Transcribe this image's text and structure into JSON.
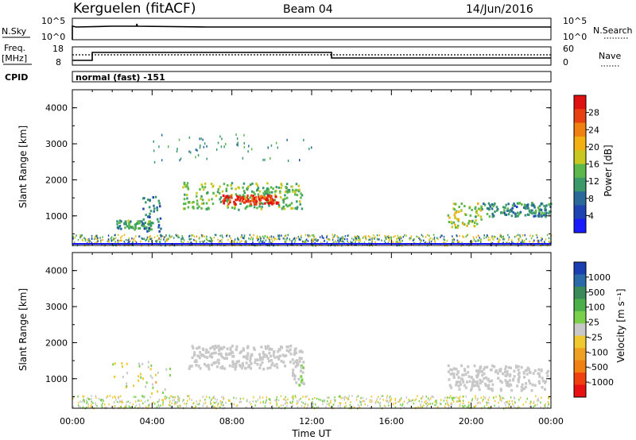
{
  "header": {
    "station": "Kerguelen (fitACF)",
    "beam": "Beam 04",
    "date": "14/Jun/2016"
  },
  "panels": {
    "nsky": {
      "left_label": "N.Sky",
      "tick_top": "10^5",
      "tick_bottom": "10^0",
      "right_tick_top": "10^5",
      "right_tick_bottom": "10^0",
      "right_label": "N.Search"
    },
    "freq": {
      "left_label_1": "Freq.",
      "left_label_2": "[MHz]",
      "tick_top": "18",
      "tick_bottom": "8",
      "right_tick_top": "60",
      "right_tick_bottom": "0",
      "right_label": "Nave"
    },
    "cpid": {
      "label": "CPID",
      "text": "normal (fast) -151"
    }
  },
  "time_axis": {
    "label": "Time UT",
    "ticks": [
      "00:00",
      "04:00",
      "08:00",
      "12:00",
      "16:00",
      "20:00",
      "00:00"
    ]
  },
  "range_axis": {
    "label": "Slant Range [km]",
    "ticks": [
      "1000",
      "2000",
      "3000",
      "4000"
    ]
  },
  "power_bar": {
    "label": "Power [dB]",
    "ticks": [
      "4",
      "8",
      "12",
      "16",
      "20",
      "24",
      "28"
    ],
    "colors": [
      "#1a1aff",
      "#1e44b4",
      "#2a6a9a",
      "#3a9a6a",
      "#5cb84a",
      "#c8c820",
      "#f2b011",
      "#f08010",
      "#e84010",
      "#e01010"
    ]
  },
  "velocity_bar": {
    "label": "Velocity [m s⁻¹]",
    "ticks": [
      "1000",
      "500",
      "100",
      "25",
      "-25",
      "-100",
      "-500",
      "-1000"
    ],
    "colors": [
      "#1a3fb0",
      "#2a6aa8",
      "#3a8a5a",
      "#4ab04a",
      "#7ad04a",
      "#c8c8c8",
      "#f0c830",
      "#f0a020",
      "#f08010",
      "#f04010",
      "#e81010"
    ]
  },
  "chart_data": {
    "type": "heatmap",
    "title": "Kerguelen (fitACF) Beam 04 14/Jun/2016",
    "xlabel": "Time UT",
    "ylabel": "Slant Range [km]",
    "xlim": [
      "00:00",
      "24:00"
    ],
    "ylim": [
      180,
      4500
    ],
    "series": [
      {
        "name": "Power [dB]",
        "range": [
          0,
          31
        ],
        "echo_regions": [
          {
            "t_start": 2.2,
            "t_end": 4.0,
            "r_min": 650,
            "r_max": 900,
            "value": 12
          },
          {
            "t_start": 3.4,
            "t_end": 4.4,
            "r_min": 600,
            "r_max": 1600,
            "value": 8
          },
          {
            "t_start": 5.5,
            "t_end": 11.5,
            "r_min": 1200,
            "r_max": 1950,
            "value": 14
          },
          {
            "t_start": 7.5,
            "t_end": 10.3,
            "r_min": 1350,
            "r_max": 1600,
            "value": 28
          },
          {
            "t_start": 18.8,
            "t_end": 20.5,
            "r_min": 700,
            "r_max": 1400,
            "value": 16
          },
          {
            "t_start": 20.5,
            "t_end": 24.0,
            "r_min": 1000,
            "r_max": 1400,
            "value": 10
          }
        ]
      },
      {
        "name": "Velocity [m s⁻¹]",
        "range": [
          -1000,
          1000
        ],
        "echo_regions": [
          {
            "t_start": 5.8,
            "t_end": 11.5,
            "r_min": 1300,
            "r_max": 1950,
            "value": 0
          },
          {
            "t_start": 11.0,
            "t_end": 11.6,
            "r_min": 800,
            "r_max": 1600,
            "value": 60
          },
          {
            "t_start": 18.8,
            "t_end": 23.8,
            "r_min": 700,
            "r_max": 1400,
            "value": 0
          }
        ]
      }
    ],
    "frequency_mhz": [
      {
        "t": 0.0,
        "v": 8.5
      },
      {
        "t": 1.0,
        "v": 12.5
      },
      {
        "t": 13.0,
        "v": 10.5
      },
      {
        "t": 24.0,
        "v": 10.5
      }
    ],
    "nave_dotted": 12
  }
}
